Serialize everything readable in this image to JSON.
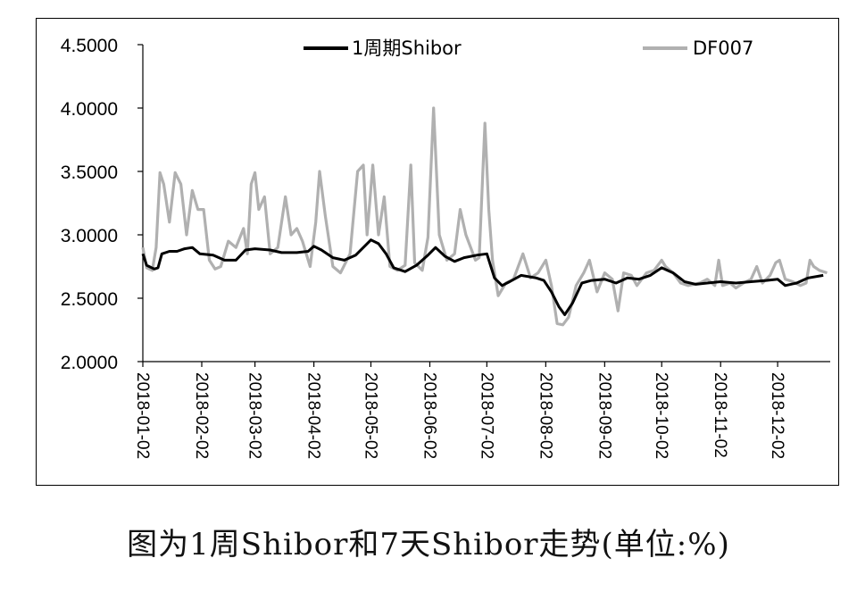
{
  "caption": "图为1周Shibor和7天Shibor走势(单位:%)",
  "chart_data": {
    "type": "line",
    "title": "",
    "xlabel": "",
    "ylabel": "",
    "ylim": [
      2.0,
      4.5
    ],
    "grid": false,
    "legend_position": "top",
    "y_ticks": [
      "2.0000",
      "2.5000",
      "3.0000",
      "3.5000",
      "4.0000",
      "4.5000"
    ],
    "x_ticks": [
      "2018-01-02",
      "2018-02-02",
      "2018-03-02",
      "2018-04-02",
      "2018-05-02",
      "2018-06-02",
      "2018-07-02",
      "2018-08-02",
      "2018-09-02",
      "2018-10-02",
      "2018-11-02",
      "2018-12-02"
    ],
    "series": [
      {
        "name": "1周期Shibor",
        "color": "#000000",
        "points": [
          [
            "2018-01-02",
            2.85
          ],
          [
            "2018-01-04",
            2.76
          ],
          [
            "2018-01-08",
            2.73
          ],
          [
            "2018-01-10",
            2.74
          ],
          [
            "2018-01-12",
            2.85
          ],
          [
            "2018-01-16",
            2.87
          ],
          [
            "2018-01-20",
            2.87
          ],
          [
            "2018-01-24",
            2.89
          ],
          [
            "2018-01-28",
            2.9
          ],
          [
            "2018-02-01",
            2.85
          ],
          [
            "2018-02-08",
            2.84
          ],
          [
            "2018-02-14",
            2.8
          ],
          [
            "2018-02-20",
            2.8
          ],
          [
            "2018-02-25",
            2.88
          ],
          [
            "2018-03-02",
            2.89
          ],
          [
            "2018-03-10",
            2.88
          ],
          [
            "2018-03-16",
            2.86
          ],
          [
            "2018-03-24",
            2.86
          ],
          [
            "2018-03-30",
            2.87
          ],
          [
            "2018-04-02",
            2.91
          ],
          [
            "2018-04-06",
            2.88
          ],
          [
            "2018-04-12",
            2.82
          ],
          [
            "2018-04-18",
            2.8
          ],
          [
            "2018-04-24",
            2.84
          ],
          [
            "2018-04-28",
            2.9
          ],
          [
            "2018-05-02",
            2.96
          ],
          [
            "2018-05-06",
            2.93
          ],
          [
            "2018-05-10",
            2.85
          ],
          [
            "2018-05-14",
            2.74
          ],
          [
            "2018-05-20",
            2.71
          ],
          [
            "2018-05-26",
            2.76
          ],
          [
            "2018-06-01",
            2.84
          ],
          [
            "2018-06-05",
            2.9
          ],
          [
            "2018-06-10",
            2.83
          ],
          [
            "2018-06-15",
            2.79
          ],
          [
            "2018-06-20",
            2.82
          ],
          [
            "2018-06-27",
            2.84
          ],
          [
            "2018-07-02",
            2.85
          ],
          [
            "2018-07-06",
            2.66
          ],
          [
            "2018-07-10",
            2.6
          ],
          [
            "2018-07-14",
            2.63
          ],
          [
            "2018-07-20",
            2.68
          ],
          [
            "2018-07-28",
            2.66
          ],
          [
            "2018-08-01",
            2.64
          ],
          [
            "2018-08-05",
            2.55
          ],
          [
            "2018-08-09",
            2.43
          ],
          [
            "2018-08-12",
            2.37
          ],
          [
            "2018-08-16",
            2.46
          ],
          [
            "2018-08-21",
            2.62
          ],
          [
            "2018-08-26",
            2.64
          ],
          [
            "2018-09-02",
            2.65
          ],
          [
            "2018-09-08",
            2.62
          ],
          [
            "2018-09-14",
            2.66
          ],
          [
            "2018-09-20",
            2.65
          ],
          [
            "2018-09-26",
            2.68
          ],
          [
            "2018-10-02",
            2.74
          ],
          [
            "2018-10-08",
            2.7
          ],
          [
            "2018-10-14",
            2.63
          ],
          [
            "2018-10-20",
            2.61
          ],
          [
            "2018-10-26",
            2.62
          ],
          [
            "2018-11-02",
            2.63
          ],
          [
            "2018-11-10",
            2.62
          ],
          [
            "2018-11-18",
            2.63
          ],
          [
            "2018-11-26",
            2.64
          ],
          [
            "2018-12-02",
            2.65
          ],
          [
            "2018-12-06",
            2.6
          ],
          [
            "2018-12-12",
            2.62
          ],
          [
            "2018-12-18",
            2.66
          ],
          [
            "2018-12-26",
            2.68
          ]
        ]
      },
      {
        "name": "DF007",
        "color": "#b0b0b0",
        "points": [
          [
            "2018-01-02",
            2.9
          ],
          [
            "2018-01-04",
            2.74
          ],
          [
            "2018-01-07",
            2.72
          ],
          [
            "2018-01-09",
            2.9
          ],
          [
            "2018-01-11",
            3.49
          ],
          [
            "2018-01-13",
            3.4
          ],
          [
            "2018-01-16",
            3.1
          ],
          [
            "2018-01-19",
            3.49
          ],
          [
            "2018-01-22",
            3.4
          ],
          [
            "2018-01-25",
            3.0
          ],
          [
            "2018-01-28",
            3.35
          ],
          [
            "2018-01-31",
            3.2
          ],
          [
            "2018-02-03",
            3.2
          ],
          [
            "2018-02-06",
            2.8
          ],
          [
            "2018-02-09",
            2.73
          ],
          [
            "2018-02-12",
            2.75
          ],
          [
            "2018-02-16",
            2.95
          ],
          [
            "2018-02-20",
            2.9
          ],
          [
            "2018-02-24",
            3.05
          ],
          [
            "2018-02-26",
            2.85
          ],
          [
            "2018-02-28",
            3.4
          ],
          [
            "2018-03-02",
            3.49
          ],
          [
            "2018-03-04",
            3.2
          ],
          [
            "2018-03-07",
            3.3
          ],
          [
            "2018-03-10",
            2.85
          ],
          [
            "2018-03-14",
            2.9
          ],
          [
            "2018-03-18",
            3.3
          ],
          [
            "2018-03-21",
            3.0
          ],
          [
            "2018-03-24",
            3.05
          ],
          [
            "2018-03-27",
            2.95
          ],
          [
            "2018-03-31",
            2.75
          ],
          [
            "2018-04-03",
            3.1
          ],
          [
            "2018-04-05",
            3.5
          ],
          [
            "2018-04-08",
            3.15
          ],
          [
            "2018-04-12",
            2.75
          ],
          [
            "2018-04-16",
            2.7
          ],
          [
            "2018-04-21",
            2.85
          ],
          [
            "2018-04-25",
            3.5
          ],
          [
            "2018-04-28",
            3.55
          ],
          [
            "2018-04-30",
            3.0
          ],
          [
            "2018-05-03",
            3.55
          ],
          [
            "2018-05-06",
            3.0
          ],
          [
            "2018-05-09",
            3.3
          ],
          [
            "2018-05-12",
            2.75
          ],
          [
            "2018-05-16",
            2.72
          ],
          [
            "2018-05-20",
            2.76
          ],
          [
            "2018-05-23",
            3.55
          ],
          [
            "2018-05-25",
            2.78
          ],
          [
            "2018-05-29",
            2.72
          ],
          [
            "2018-06-01",
            2.98
          ],
          [
            "2018-06-04",
            4.0
          ],
          [
            "2018-06-07",
            3.0
          ],
          [
            "2018-06-11",
            2.8
          ],
          [
            "2018-06-15",
            2.85
          ],
          [
            "2018-06-18",
            3.2
          ],
          [
            "2018-06-21",
            3.0
          ],
          [
            "2018-06-26",
            2.8
          ],
          [
            "2018-06-28",
            2.82
          ],
          [
            "2018-07-01",
            3.88
          ],
          [
            "2018-07-03",
            3.2
          ],
          [
            "2018-07-05",
            2.8
          ],
          [
            "2018-07-08",
            2.52
          ],
          [
            "2018-07-12",
            2.62
          ],
          [
            "2018-07-16",
            2.65
          ],
          [
            "2018-07-21",
            2.85
          ],
          [
            "2018-07-25",
            2.66
          ],
          [
            "2018-07-29",
            2.7
          ],
          [
            "2018-08-02",
            2.8
          ],
          [
            "2018-08-05",
            2.6
          ],
          [
            "2018-08-08",
            2.3
          ],
          [
            "2018-08-11",
            2.29
          ],
          [
            "2018-08-14",
            2.35
          ],
          [
            "2018-08-18",
            2.6
          ],
          [
            "2018-08-22",
            2.7
          ],
          [
            "2018-08-25",
            2.8
          ],
          [
            "2018-08-29",
            2.55
          ],
          [
            "2018-09-02",
            2.7
          ],
          [
            "2018-09-06",
            2.65
          ],
          [
            "2018-09-09",
            2.4
          ],
          [
            "2018-09-12",
            2.7
          ],
          [
            "2018-09-16",
            2.68
          ],
          [
            "2018-09-19",
            2.6
          ],
          [
            "2018-09-24",
            2.7
          ],
          [
            "2018-09-28",
            2.72
          ],
          [
            "2018-10-02",
            2.8
          ],
          [
            "2018-10-04",
            2.75
          ],
          [
            "2018-10-08",
            2.7
          ],
          [
            "2018-10-12",
            2.62
          ],
          [
            "2018-10-16",
            2.6
          ],
          [
            "2018-10-22",
            2.62
          ],
          [
            "2018-10-26",
            2.65
          ],
          [
            "2018-10-30",
            2.6
          ],
          [
            "2018-11-01",
            2.8
          ],
          [
            "2018-11-03",
            2.6
          ],
          [
            "2018-11-07",
            2.62
          ],
          [
            "2018-11-10",
            2.58
          ],
          [
            "2018-11-14",
            2.62
          ],
          [
            "2018-11-18",
            2.65
          ],
          [
            "2018-11-21",
            2.75
          ],
          [
            "2018-11-24",
            2.62
          ],
          [
            "2018-11-28",
            2.68
          ],
          [
            "2018-12-01",
            2.78
          ],
          [
            "2018-12-03",
            2.8
          ],
          [
            "2018-12-06",
            2.65
          ],
          [
            "2018-12-10",
            2.63
          ],
          [
            "2018-12-14",
            2.6
          ],
          [
            "2018-12-17",
            2.62
          ],
          [
            "2018-12-19",
            2.8
          ],
          [
            "2018-12-21",
            2.75
          ],
          [
            "2018-12-24",
            2.72
          ],
          [
            "2018-12-28",
            2.7
          ]
        ]
      }
    ]
  }
}
